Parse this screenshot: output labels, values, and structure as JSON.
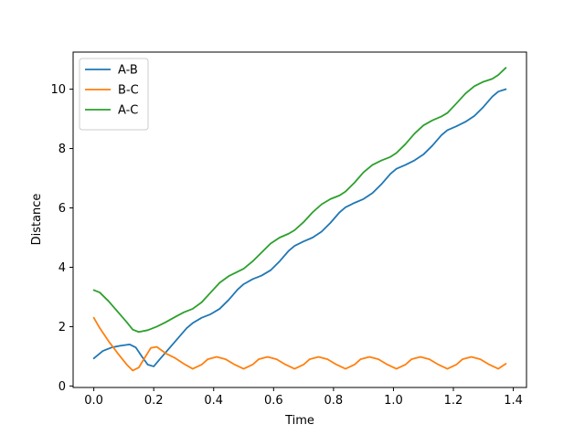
{
  "chart_data": {
    "type": "line",
    "title": "",
    "xlabel": "Time",
    "ylabel": "Distance",
    "xlim": [
      -0.069,
      1.444
    ],
    "ylim": [
      -0.05,
      11.25
    ],
    "xticks": [
      0.0,
      0.2,
      0.4,
      0.6,
      0.8,
      1.0,
      1.2,
      1.4
    ],
    "xtick_labels": [
      "0.0",
      "0.2",
      "0.4",
      "0.6",
      "0.8",
      "1.0",
      "1.2",
      "1.4"
    ],
    "yticks": [
      0,
      2,
      4,
      6,
      8,
      10
    ],
    "ytick_labels": [
      "0",
      "2",
      "4",
      "6",
      "8",
      "10"
    ],
    "grid": false,
    "legend_position": "top-left",
    "series": [
      {
        "name": "A-B",
        "color": "#1f77b4",
        "x": [
          0.0,
          0.03,
          0.06,
          0.09,
          0.12,
          0.14,
          0.16,
          0.18,
          0.2,
          0.22,
          0.25,
          0.28,
          0.31,
          0.33,
          0.36,
          0.39,
          0.42,
          0.45,
          0.48,
          0.5,
          0.53,
          0.56,
          0.59,
          0.62,
          0.65,
          0.67,
          0.7,
          0.73,
          0.76,
          0.79,
          0.82,
          0.84,
          0.87,
          0.9,
          0.93,
          0.96,
          0.99,
          1.01,
          1.04,
          1.07,
          1.1,
          1.13,
          1.16,
          1.18,
          1.21,
          1.24,
          1.27,
          1.3,
          1.33,
          1.35,
          1.375
        ],
        "y": [
          0.93,
          1.18,
          1.3,
          1.36,
          1.4,
          1.3,
          1.0,
          0.72,
          0.66,
          0.9,
          1.25,
          1.6,
          1.95,
          2.12,
          2.3,
          2.42,
          2.6,
          2.9,
          3.25,
          3.43,
          3.6,
          3.72,
          3.9,
          4.2,
          4.55,
          4.72,
          4.87,
          5.0,
          5.2,
          5.5,
          5.85,
          6.02,
          6.17,
          6.3,
          6.5,
          6.8,
          7.15,
          7.32,
          7.45,
          7.6,
          7.8,
          8.1,
          8.45,
          8.62,
          8.75,
          8.9,
          9.1,
          9.4,
          9.75,
          9.92,
          10.0
        ]
      },
      {
        "name": "B-C",
        "color": "#ff7f0e",
        "x": [
          0.0,
          0.02,
          0.05,
          0.08,
          0.11,
          0.13,
          0.15,
          0.17,
          0.19,
          0.21,
          0.24,
          0.27,
          0.3,
          0.33,
          0.36,
          0.38,
          0.41,
          0.44,
          0.47,
          0.5,
          0.53,
          0.55,
          0.58,
          0.61,
          0.64,
          0.67,
          0.7,
          0.72,
          0.75,
          0.78,
          0.81,
          0.84,
          0.87,
          0.89,
          0.92,
          0.95,
          0.98,
          1.01,
          1.04,
          1.06,
          1.09,
          1.12,
          1.15,
          1.18,
          1.21,
          1.23,
          1.26,
          1.29,
          1.32,
          1.35,
          1.375
        ],
        "y": [
          2.3,
          1.95,
          1.5,
          1.1,
          0.72,
          0.52,
          0.62,
          0.95,
          1.28,
          1.32,
          1.1,
          0.95,
          0.75,
          0.58,
          0.72,
          0.9,
          0.98,
          0.9,
          0.72,
          0.58,
          0.72,
          0.9,
          0.98,
          0.9,
          0.72,
          0.58,
          0.72,
          0.9,
          0.98,
          0.9,
          0.72,
          0.58,
          0.72,
          0.9,
          0.98,
          0.9,
          0.72,
          0.58,
          0.72,
          0.9,
          0.98,
          0.9,
          0.72,
          0.58,
          0.72,
          0.9,
          0.98,
          0.9,
          0.72,
          0.58,
          0.75
        ]
      },
      {
        "name": "A-C",
        "color": "#2ca02c",
        "x": [
          0.0,
          0.02,
          0.05,
          0.08,
          0.11,
          0.13,
          0.15,
          0.18,
          0.21,
          0.24,
          0.27,
          0.3,
          0.33,
          0.36,
          0.39,
          0.42,
          0.45,
          0.48,
          0.5,
          0.53,
          0.56,
          0.59,
          0.62,
          0.65,
          0.67,
          0.7,
          0.73,
          0.76,
          0.79,
          0.82,
          0.84,
          0.87,
          0.9,
          0.93,
          0.96,
          0.99,
          1.01,
          1.04,
          1.07,
          1.1,
          1.13,
          1.16,
          1.18,
          1.21,
          1.24,
          1.27,
          1.3,
          1.33,
          1.35,
          1.375
        ],
        "y": [
          3.23,
          3.15,
          2.85,
          2.5,
          2.15,
          1.9,
          1.82,
          1.88,
          2.0,
          2.15,
          2.32,
          2.48,
          2.6,
          2.82,
          3.15,
          3.48,
          3.7,
          3.85,
          3.95,
          4.2,
          4.5,
          4.8,
          5.0,
          5.13,
          5.25,
          5.52,
          5.85,
          6.12,
          6.3,
          6.42,
          6.55,
          6.85,
          7.2,
          7.45,
          7.6,
          7.72,
          7.85,
          8.15,
          8.5,
          8.78,
          8.95,
          9.08,
          9.2,
          9.52,
          9.85,
          10.1,
          10.25,
          10.35,
          10.48,
          10.72
        ]
      }
    ]
  }
}
